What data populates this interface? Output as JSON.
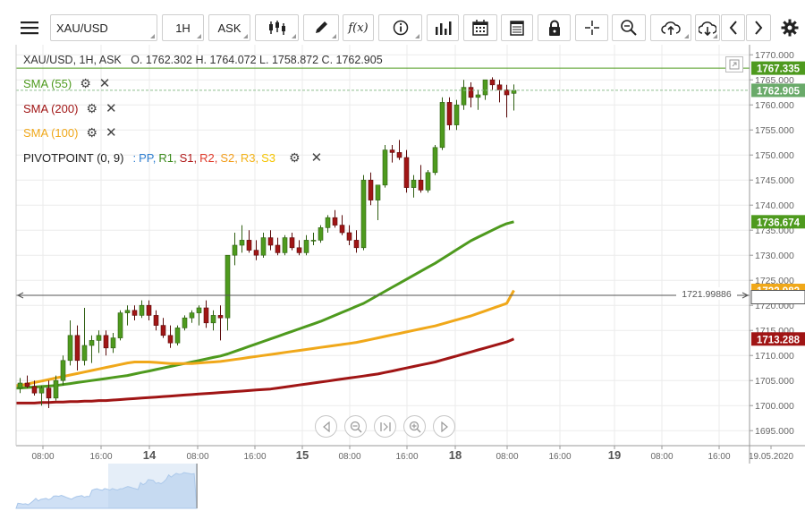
{
  "toolbar": {
    "symbol": "XAU/USD",
    "timeframe": "1H",
    "price_side": "ASK",
    "icons": [
      "hamburger-menu-icon",
      "candlestick-icon",
      "pencil-icon",
      "function-icon",
      "info-icon",
      "bar-chart-icon",
      "calendar-icon",
      "table-icon",
      "lock-icon",
      "crosshair-icon",
      "zoom-icon",
      "cloud-upload-icon",
      "cloud-download-icon",
      "chevron-left-icon",
      "chevron-right-icon",
      "gear-icon"
    ],
    "function_label": "f(x)"
  },
  "legend": {
    "header": "XAU/USD, 1H, ASK",
    "ohlc": "O. 1762.302 H. 1764.072 L. 1758.872 C. 1762.905",
    "indicators": [
      {
        "label": "SMA (55)",
        "color": "#4e9a1e"
      },
      {
        "label": "SMA (200)",
        "color": "#a01515"
      },
      {
        "label": "SMA (100)",
        "color": "#f0a81a"
      }
    ],
    "pivot": {
      "label": "PIVOTPOINT (0, 9)",
      "sep": ":",
      "parts": [
        {
          "text": "PP,",
          "color": "#2f7fd1"
        },
        {
          "text": "R1,",
          "color": "#3b8a1c"
        },
        {
          "text": "S1,",
          "color": "#b01a1a"
        },
        {
          "text": "R2,",
          "color": "#e03a2a"
        },
        {
          "text": "S2,",
          "color": "#f29d1a"
        },
        {
          "text": "R3,",
          "color": "#f3b31a"
        },
        {
          "text": "S3",
          "color": "#f5c400"
        }
      ]
    }
  },
  "chart_data": {
    "type": "candlestick",
    "symbol": "XAU/USD",
    "interval": "1H",
    "ylim": [
      1692,
      1772
    ],
    "y_ticks": [
      1695,
      1700,
      1705,
      1710,
      1715,
      1720,
      1725,
      1730,
      1735,
      1740,
      1745,
      1750,
      1755,
      1760,
      1765,
      1770
    ],
    "y_tick_labels": [
      "1695.000",
      "1700.000",
      "1705.000",
      "1710.000",
      "1715.000",
      "1720.000",
      "1725.000",
      "1730.000",
      "1735.000",
      "1740.000",
      "1745.000",
      "1750.000",
      "1755.000",
      "1760.000",
      "1765.000",
      "1770.000"
    ],
    "x_labels": [
      {
        "label": "08:00",
        "bold": false
      },
      {
        "label": "16:00",
        "bold": false
      },
      {
        "label": "14",
        "bold": true
      },
      {
        "label": "08:00",
        "bold": false
      },
      {
        "label": "16:00",
        "bold": false
      },
      {
        "label": "15",
        "bold": true
      },
      {
        "label": "08:00",
        "bold": false
      },
      {
        "label": "16:00",
        "bold": false
      },
      {
        "label": "18",
        "bold": true
      },
      {
        "label": "08:00",
        "bold": false
      },
      {
        "label": "16:00",
        "bold": false
      },
      {
        "label": "19",
        "bold": true
      },
      {
        "label": "08:00",
        "bold": false
      },
      {
        "label": "16:00",
        "bold": false
      },
      {
        "label": "19.05.2020",
        "bold": false
      }
    ],
    "candles": [
      [
        1703.5,
        1705.5,
        1702.5,
        1704.5
      ],
      [
        1704.5,
        1706.0,
        1703.5,
        1703.8
      ],
      [
        1703.8,
        1705.0,
        1702.0,
        1702.5
      ],
      [
        1702.5,
        1704.0,
        1700.0,
        1703.5
      ],
      [
        1703.5,
        1705.0,
        1699.5,
        1701.5
      ],
      [
        1701.5,
        1706.0,
        1701.0,
        1705.0
      ],
      [
        1705.0,
        1710.0,
        1704.0,
        1709.0
      ],
      [
        1709.0,
        1717.0,
        1708.0,
        1714.0
      ],
      [
        1714.0,
        1716.0,
        1707.0,
        1709.0
      ],
      [
        1709.0,
        1719.5,
        1708.0,
        1712.0
      ],
      [
        1712.0,
        1714.0,
        1708.5,
        1713.0
      ],
      [
        1713.0,
        1715.0,
        1710.5,
        1714.0
      ],
      [
        1714.0,
        1715.0,
        1710.0,
        1711.5
      ],
      [
        1711.5,
        1714.5,
        1710.5,
        1713.5
      ],
      [
        1713.5,
        1719.0,
        1713.0,
        1718.5
      ],
      [
        1718.5,
        1720.0,
        1716.0,
        1719.0
      ],
      [
        1719.0,
        1720.0,
        1717.0,
        1718.0
      ],
      [
        1718.0,
        1721.0,
        1717.5,
        1720.0
      ],
      [
        1720.0,
        1721.0,
        1717.0,
        1718.0
      ],
      [
        1718.0,
        1719.0,
        1715.0,
        1716.0
      ],
      [
        1716.0,
        1717.5,
        1713.5,
        1714.0
      ],
      [
        1714.0,
        1716.0,
        1711.5,
        1712.5
      ],
      [
        1712.5,
        1716.0,
        1712.0,
        1715.5
      ],
      [
        1715.5,
        1718.0,
        1715.0,
        1717.5
      ],
      [
        1717.5,
        1719.0,
        1716.5,
        1718.5
      ],
      [
        1718.5,
        1720.0,
        1716.0,
        1719.5
      ],
      [
        1719.5,
        1721.0,
        1715.5,
        1716.5
      ],
      [
        1716.5,
        1719.0,
        1715.0,
        1718.0
      ],
      [
        1718.0,
        1720.0,
        1713.0,
        1717.5
      ],
      [
        1717.5,
        1730.0,
        1715.0,
        1730.0
      ],
      [
        1730.0,
        1734.5,
        1728.0,
        1732.0
      ],
      [
        1732.0,
        1736.0,
        1730.5,
        1733.0
      ],
      [
        1733.0,
        1735.0,
        1730.5,
        1731.0
      ],
      [
        1731.0,
        1733.0,
        1729.0,
        1730.0
      ],
      [
        1730.0,
        1734.5,
        1729.5,
        1733.5
      ],
      [
        1733.5,
        1735.0,
        1731.0,
        1732.0
      ],
      [
        1732.0,
        1733.5,
        1730.0,
        1730.5
      ],
      [
        1730.5,
        1734.0,
        1730.0,
        1733.5
      ],
      [
        1733.5,
        1734.5,
        1731.0,
        1731.5
      ],
      [
        1731.5,
        1733.0,
        1730.0,
        1730.5
      ],
      [
        1730.5,
        1734.0,
        1730.0,
        1733.0
      ],
      [
        1733.0,
        1734.5,
        1732.0,
        1733.0
      ],
      [
        1733.0,
        1736.0,
        1732.5,
        1735.5
      ],
      [
        1735.5,
        1738.0,
        1734.5,
        1737.5
      ],
      [
        1737.5,
        1739.0,
        1735.5,
        1736.0
      ],
      [
        1736.0,
        1738.0,
        1734.0,
        1734.5
      ],
      [
        1734.5,
        1736.0,
        1732.0,
        1733.0
      ],
      [
        1733.0,
        1735.0,
        1730.5,
        1731.5
      ],
      [
        1731.5,
        1746.0,
        1731.0,
        1745.0
      ],
      [
        1745.0,
        1746.5,
        1740.0,
        1741.0
      ],
      [
        1741.0,
        1744.0,
        1737.0,
        1744.0
      ],
      [
        1744.0,
        1752.0,
        1743.5,
        1751.0
      ],
      [
        1751.0,
        1752.0,
        1748.5,
        1750.5
      ],
      [
        1750.5,
        1753.0,
        1749.0,
        1749.5
      ],
      [
        1749.5,
        1751.0,
        1742.5,
        1743.5
      ],
      [
        1743.5,
        1746.0,
        1741.5,
        1745.0
      ],
      [
        1745.0,
        1748.0,
        1742.5,
        1743.0
      ],
      [
        1743.0,
        1747.0,
        1742.5,
        1746.5
      ],
      [
        1746.5,
        1752.0,
        1746.0,
        1751.5
      ],
      [
        1751.5,
        1761.5,
        1751.0,
        1760.5
      ],
      [
        1760.5,
        1761.5,
        1755.0,
        1756.0
      ],
      [
        1756.0,
        1761.0,
        1755.0,
        1760.0
      ],
      [
        1760.0,
        1765.0,
        1759.0,
        1763.5
      ],
      [
        1763.5,
        1764.5,
        1759.5,
        1761.5
      ],
      [
        1761.5,
        1763.0,
        1759.0,
        1762.0
      ],
      [
        1762.0,
        1765.0,
        1761.0,
        1765.0
      ],
      [
        1765.0,
        1765.5,
        1763.0,
        1764.0
      ],
      [
        1764.0,
        1765.0,
        1760.5,
        1763.0
      ],
      [
        1763.0,
        1764.0,
        1757.5,
        1762.0
      ],
      [
        1762.302,
        1764.072,
        1758.872,
        1762.905
      ]
    ],
    "series": [
      {
        "name": "SMA (55)",
        "color": "#4e9a1e",
        "values": [
          1703.5,
          1703.6,
          1703.7,
          1703.8,
          1703.9,
          1704.0,
          1704.2,
          1704.4,
          1704.6,
          1704.8,
          1705.0,
          1705.2,
          1705.4,
          1705.6,
          1705.8,
          1706.0,
          1706.3,
          1706.6,
          1706.9,
          1707.2,
          1707.5,
          1707.8,
          1708.1,
          1708.4,
          1708.7,
          1709.0,
          1709.3,
          1709.6,
          1709.9,
          1710.3,
          1710.8,
          1711.3,
          1711.8,
          1712.3,
          1712.8,
          1713.3,
          1713.8,
          1714.3,
          1714.8,
          1715.3,
          1715.8,
          1716.3,
          1716.8,
          1717.4,
          1718.0,
          1718.6,
          1719.2,
          1719.8,
          1720.4,
          1721.2,
          1722.0,
          1722.8,
          1723.6,
          1724.4,
          1725.2,
          1726.0,
          1726.8,
          1727.6,
          1728.4,
          1729.3,
          1730.2,
          1731.1,
          1732.0,
          1732.9,
          1733.6,
          1734.3,
          1735.0,
          1735.7,
          1736.3,
          1736.674
        ]
      },
      {
        "name": "SMA (100)",
        "color": "#f0a81a",
        "values": [
          1704.0,
          1704.3,
          1704.6,
          1704.9,
          1705.2,
          1705.5,
          1705.8,
          1706.1,
          1706.4,
          1706.7,
          1707.0,
          1707.3,
          1707.6,
          1707.9,
          1708.2,
          1708.5,
          1708.7,
          1708.7,
          1708.7,
          1708.6,
          1708.5,
          1708.4,
          1708.4,
          1708.4,
          1708.4,
          1708.5,
          1708.6,
          1708.7,
          1708.8,
          1709.0,
          1709.2,
          1709.4,
          1709.6,
          1709.8,
          1710.0,
          1710.2,
          1710.4,
          1710.6,
          1710.8,
          1711.0,
          1711.2,
          1711.4,
          1711.6,
          1711.8,
          1712.0,
          1712.2,
          1712.4,
          1712.6,
          1712.9,
          1713.2,
          1713.5,
          1713.8,
          1714.1,
          1714.4,
          1714.7,
          1715.0,
          1715.3,
          1715.6,
          1715.9,
          1716.3,
          1716.7,
          1717.1,
          1717.5,
          1717.9,
          1718.4,
          1718.9,
          1719.4,
          1719.9,
          1720.4,
          1722.982
        ]
      },
      {
        "name": "SMA (200)",
        "color": "#a01515",
        "values": [
          1700.5,
          1700.5,
          1700.5,
          1700.6,
          1700.6,
          1700.7,
          1700.7,
          1700.8,
          1700.8,
          1700.9,
          1700.9,
          1701.0,
          1701.0,
          1701.1,
          1701.2,
          1701.3,
          1701.4,
          1701.5,
          1701.6,
          1701.7,
          1701.8,
          1701.9,
          1702.0,
          1702.1,
          1702.2,
          1702.3,
          1702.4,
          1702.5,
          1702.6,
          1702.7,
          1702.8,
          1702.9,
          1703.0,
          1703.1,
          1703.2,
          1703.3,
          1703.5,
          1703.7,
          1703.9,
          1704.1,
          1704.3,
          1704.5,
          1704.7,
          1704.9,
          1705.1,
          1705.3,
          1705.5,
          1705.7,
          1705.9,
          1706.1,
          1706.3,
          1706.6,
          1706.9,
          1707.2,
          1707.5,
          1707.8,
          1708.1,
          1708.4,
          1708.7,
          1709.1,
          1709.5,
          1709.9,
          1710.3,
          1710.7,
          1711.1,
          1711.5,
          1711.9,
          1712.3,
          1712.7,
          1713.288
        ]
      }
    ],
    "price_tags": [
      {
        "label": "1767.335",
        "value": 1767.335,
        "bg": "#4e9a1e",
        "line": true,
        "line_color": "#4e9a1e"
      },
      {
        "label": "1762.905",
        "value": 1762.905,
        "bg": "#6aaa6a",
        "line": true,
        "line_color": "#8fbf8f"
      },
      {
        "label": "1736.674",
        "value": 1736.674,
        "bg": "#4e9a1e",
        "line": false
      },
      {
        "label": "1722.982",
        "value": 1722.982,
        "bg": "#f0a81a",
        "line": false
      },
      {
        "label": "1713.288",
        "value": 1713.288,
        "bg": "#a01515",
        "line": false
      }
    ],
    "crosshair": {
      "label": "1721.99886",
      "value": 1721.99886
    },
    "grid": true
  },
  "colors": {
    "bull": "#4e9a1e",
    "bear": "#a01515",
    "grid": "#ebebeb",
    "axis": "#999999"
  }
}
